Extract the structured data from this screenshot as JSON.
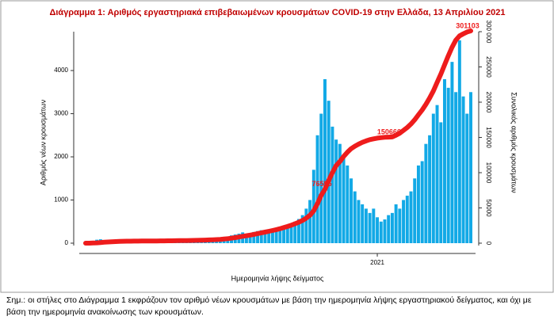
{
  "chart_data": {
    "type": "bar-line",
    "title": "Διάγραμμα 1: Αριθμός εργαστηριακά επιβεβαιωμένων κρουσμάτων COVID-19 στην Ελλάδα, 13 Απριλίου 2021",
    "xlabel": "Ημερομηνία λήψης δείγματος",
    "ylabel": "Αριθμός νέων κρουσμάτων",
    "y2label": "Συνολικός αριθμός κρουσμάτων",
    "categories": [
      null,
      null,
      null,
      null,
      null,
      null,
      null,
      null,
      null,
      null,
      null,
      null,
      null,
      null,
      null,
      null,
      null,
      null,
      null,
      null,
      null,
      null,
      null,
      null,
      null,
      null,
      null,
      null,
      null,
      null,
      null,
      null,
      null,
      null,
      null,
      null,
      null,
      null,
      null,
      null,
      null,
      null,
      null,
      null,
      null,
      null,
      null,
      null,
      null,
      null,
      null,
      null,
      null,
      null,
      null,
      null,
      null,
      null,
      null,
      null,
      null,
      null,
      null,
      null,
      null,
      null,
      null,
      null,
      null,
      null,
      null,
      null,
      null,
      null,
      null,
      null,
      null,
      null,
      "2021",
      null,
      null,
      null,
      null,
      null,
      null,
      null,
      null,
      null,
      null,
      null,
      null,
      null,
      null,
      null,
      null,
      null,
      null,
      null,
      null,
      null,
      null,
      null,
      null,
      null
    ],
    "series": [
      {
        "color": "#12a9e6",
        "values": [
          0,
          10,
          40,
          80,
          90,
          70,
          60,
          50,
          40,
          30,
          20,
          15,
          15,
          10,
          10,
          10,
          10,
          10,
          10,
          5,
          10,
          15,
          20,
          15,
          15,
          20,
          25,
          20,
          30,
          30,
          35,
          40,
          40,
          50,
          60,
          70,
          90,
          120,
          150,
          180,
          200,
          220,
          250,
          200,
          230,
          260,
          280,
          300,
          250,
          280,
          300,
          320,
          350,
          380,
          420,
          450,
          500,
          560,
          650,
          800,
          1000,
          1700,
          2500,
          3000,
          3800,
          3300,
          2700,
          2400,
          2300,
          2000,
          1800,
          1500,
          1200,
          1000,
          900,
          800,
          700,
          800,
          600,
          500,
          550,
          650,
          700,
          900,
          800,
          1000,
          1100,
          1200,
          1500,
          1800,
          1900,
          2300,
          2500,
          3000,
          3200,
          2800,
          3800,
          3600,
          4200,
          3500,
          4700,
          3400,
          3000,
          3500
        ]
      },
      {
        "color": "#ee1c1c",
        "axis": "y2",
        "values": [
          0,
          10,
          200,
          500,
          900,
          1300,
          1700,
          2000,
          2300,
          2500,
          2700,
          2800,
          2850,
          2900,
          2950,
          3000,
          3050,
          3100,
          3150,
          3200,
          3250,
          3300,
          3350,
          3400,
          3450,
          3550,
          3650,
          3750,
          3850,
          3950,
          4100,
          4250,
          4400,
          4600,
          4800,
          5100,
          5400,
          5800,
          6400,
          7100,
          7900,
          8800,
          9800,
          10600,
          11500,
          12500,
          13600,
          14700,
          15700,
          16800,
          18000,
          19200,
          20600,
          22100,
          23700,
          25500,
          27500,
          29700,
          32300,
          35500,
          39500,
          46000,
          56000,
          68000,
          76555,
          89000,
          100000,
          110000,
          116000,
          123000,
          129000,
          134000,
          137500,
          140500,
          143000,
          145000,
          146800,
          148000,
          149000,
          149700,
          150200,
          150400,
          150666,
          153000,
          156000,
          160000,
          164000,
          169000,
          175000,
          182000,
          189000,
          197000,
          206000,
          216000,
          228000,
          240000,
          253000,
          266000,
          278000,
          288000,
          294000,
          297000,
          299500,
          301103
        ],
        "value_labels": [
          null,
          null,
          null,
          null,
          null,
          null,
          null,
          null,
          null,
          null,
          null,
          null,
          null,
          null,
          null,
          null,
          null,
          null,
          null,
          null,
          null,
          null,
          null,
          null,
          null,
          null,
          null,
          null,
          null,
          null,
          null,
          null,
          null,
          null,
          null,
          null,
          null,
          null,
          null,
          null,
          null,
          null,
          null,
          null,
          null,
          null,
          null,
          null,
          null,
          null,
          null,
          null,
          null,
          null,
          null,
          null,
          null,
          null,
          null,
          null,
          null,
          null,
          null,
          null,
          "76555",
          null,
          null,
          null,
          null,
          null,
          null,
          null,
          null,
          null,
          null,
          null,
          null,
          null,
          null,
          null,
          null,
          null,
          "150666",
          null,
          null,
          null,
          null,
          null,
          null,
          null,
          null,
          null,
          null,
          null,
          null,
          null,
          null,
          null,
          null,
          null,
          null,
          null,
          null,
          "301103"
        ]
      }
    ],
    "ylim": [
      0,
      4900
    ],
    "yticks": [
      0,
      1000,
      2000,
      3000,
      4000
    ],
    "y2lim": [
      0,
      300000
    ],
    "y2ticks": [
      0,
      50000,
      100000,
      150000,
      200000,
      250000,
      {
        "value": 300000,
        "label": "300 000"
      }
    ]
  },
  "note": "Σημ.: οι στήλες στο Διάγραμμα 1 εκφράζουν τον αριθμό νέων κρουσμάτων με βάση την ημερομηνία λήψης εργαστηριακού δείγματος, και όχι με βάση την ημερομηνία ανακοίνωσης των κρουσμάτων."
}
